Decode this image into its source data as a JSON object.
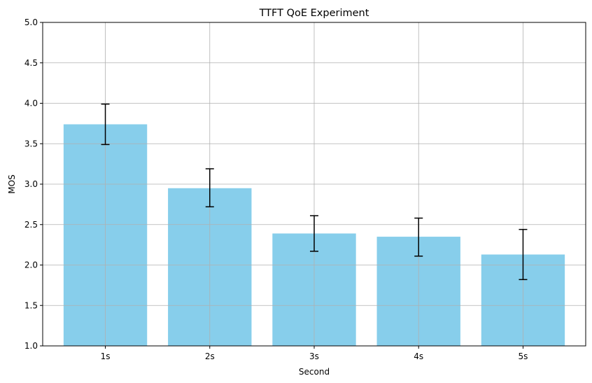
{
  "chart_data": {
    "type": "bar",
    "title": "TTFT QoE Experiment",
    "xlabel": "Second",
    "ylabel": "MOS",
    "categories": [
      "1s",
      "2s",
      "3s",
      "4s",
      "5s"
    ],
    "values": [
      3.74,
      2.95,
      2.39,
      2.35,
      2.13
    ],
    "error_low": [
      3.49,
      2.72,
      2.17,
      2.11,
      1.82
    ],
    "error_high": [
      3.99,
      3.19,
      2.61,
      2.58,
      2.44
    ],
    "ylim": [
      1.0,
      5.0
    ],
    "yticks": [
      "1.0",
      "1.5",
      "2.0",
      "2.5",
      "3.0",
      "3.5",
      "4.0",
      "4.5",
      "5.0"
    ],
    "grid": true,
    "bar_color": "#87CEEB",
    "errorbar_color": "#000000",
    "grid_color": "#b0b0b0"
  }
}
